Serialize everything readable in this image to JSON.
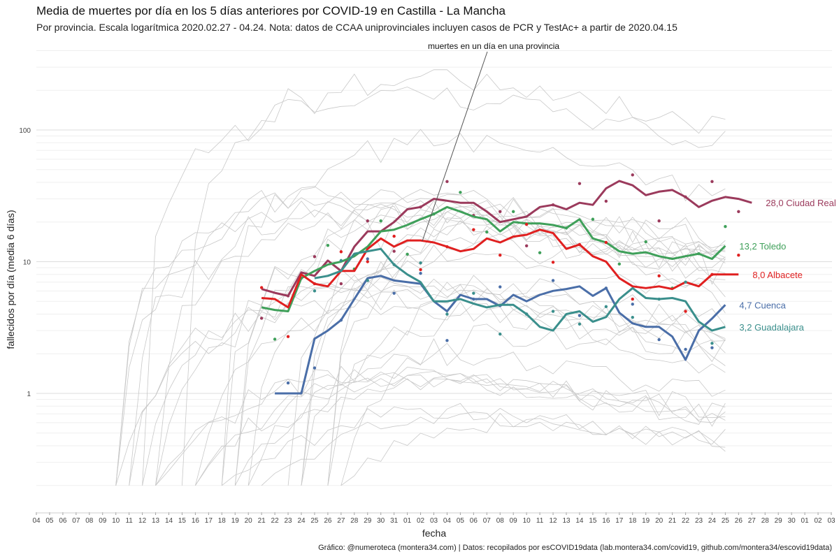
{
  "title": "Media de muertes por día en los 5 días anteriores por COVID-19 en Castilla - La Mancha",
  "subtitle": "Por provincia. Escala logarítmica  2020.02.27 - 04.24. Nota: datos de CCAA uniprovinciales incluyen casos de PCR y TestAc+ a partir de 2020.04.15",
  "caption": "Gráfico: @numeroteca (montera34.com) | Datos: recopilados por esCOVID19data (lab.montera34.com/covid19, github.com/montera34/escovid19data)",
  "chart_data": {
    "type": "line",
    "scale_y": "log",
    "xlabel": "fecha",
    "ylabel": "fallecidos por día (media 6 días)",
    "ylim": [
      0.15,
      400
    ],
    "y_ticks": [
      1,
      10,
      100
    ],
    "grid": true,
    "annotation": "muertes en un día en una provincia",
    "x_tick_labels": [
      "04",
      "05",
      "06",
      "07",
      "08",
      "09",
      "10",
      "11",
      "12",
      "13",
      "14",
      "15",
      "16",
      "17",
      "18",
      "19",
      "20",
      "21",
      "22",
      "23",
      "24",
      "25",
      "26",
      "27",
      "28",
      "29",
      "30",
      "31",
      "01",
      "02",
      "03",
      "04",
      "05",
      "06",
      "07",
      "08",
      "09",
      "10",
      "11",
      "12",
      "13",
      "14",
      "15",
      "16",
      "17",
      "18",
      "19",
      "20",
      "21",
      "22",
      "23",
      "24",
      "25",
      "26",
      "27",
      "28",
      "29",
      "30",
      "01",
      "02",
      "03"
    ],
    "series": [
      {
        "name": "Ciudad Real",
        "label": "28,0 Ciudad Real",
        "color": "#9b3a5c",
        "start": 17,
        "values": [
          6.2,
          5.8,
          5.5,
          8.3,
          7.8,
          10.2,
          8.5,
          13,
          17,
          17,
          20,
          25,
          26,
          30,
          29,
          28,
          28,
          24,
          20,
          21,
          22,
          26,
          27,
          25,
          28,
          27,
          36,
          41,
          38,
          32,
          34,
          35,
          31,
          26,
          29,
          31,
          30,
          28
        ]
      },
      {
        "name": "Toledo",
        "label": "13,2 Toledo",
        "color": "#3fa05a",
        "start": 17,
        "values": [
          4.5,
          4.3,
          4.2,
          7.5,
          8.5,
          9.5,
          10,
          11,
          13,
          17,
          17.5,
          19,
          21,
          23,
          26,
          24,
          22,
          21,
          17,
          20,
          19.5,
          19.5,
          19,
          18,
          21,
          15,
          14,
          12,
          11.5,
          11.8,
          11,
          10.5,
          11,
          11.5,
          10.5,
          13.2
        ]
      },
      {
        "name": "Albacete",
        "label": "8,0 Albacete",
        "color": "#e02020",
        "start": 17,
        "values": [
          5.3,
          5.2,
          4.5,
          8,
          6.8,
          6.5,
          8.5,
          8.5,
          12.5,
          15,
          13,
          14.5,
          14.5,
          14,
          13,
          12,
          12.5,
          15,
          14,
          15.5,
          16,
          17.5,
          16.5,
          12.5,
          13.5,
          11,
          10,
          7.5,
          6.5,
          6.3,
          6.5,
          6.2,
          7,
          6.5,
          8,
          8,
          8
        ]
      },
      {
        "name": "Cuenca",
        "label": "4,7 Cuenca",
        "color": "#4a6ea8",
        "start": 18,
        "values": [
          1,
          1,
          1,
          2.6,
          3,
          3.6,
          5.2,
          7.5,
          7.8,
          7.2,
          7,
          6.8,
          5,
          4.2,
          5.6,
          5.2,
          5.2,
          4.6,
          5.6,
          5,
          5.6,
          6,
          6.2,
          6.5,
          5.5,
          6.3,
          4.1,
          3.4,
          3.2,
          3.2,
          2.7,
          1.8,
          3,
          3.7,
          4.7
        ]
      },
      {
        "name": "Guadalajara",
        "label": "3,2 Guadalajara",
        "color": "#3a8f8c",
        "start": 21,
        "values": [
          7.5,
          7.8,
          8.5,
          11.5,
          12,
          12.5,
          9.5,
          8,
          7,
          5,
          5,
          5.2,
          4.8,
          4.5,
          4.7,
          4.7,
          4,
          3.2,
          3,
          4,
          4.2,
          3.5,
          3.8,
          5.2,
          6.3,
          5.3,
          5.2,
          5.3,
          5,
          3.5,
          3,
          3.2
        ]
      }
    ]
  }
}
